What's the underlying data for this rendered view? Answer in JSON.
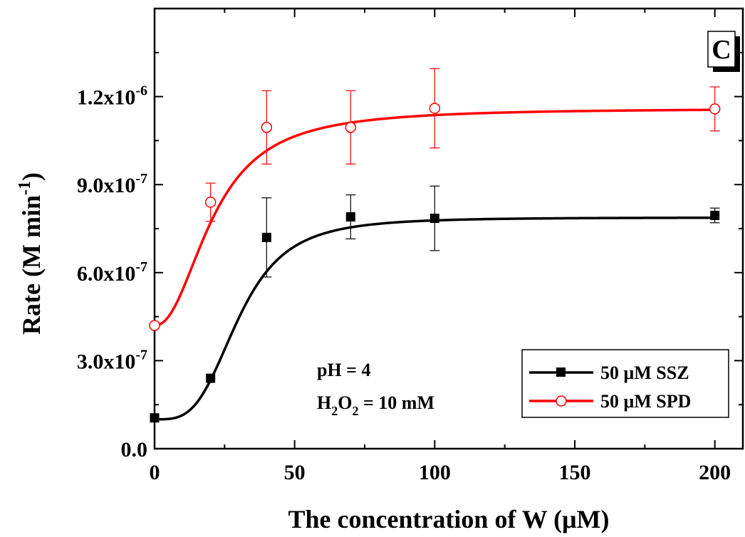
{
  "chart_data": {
    "type": "line",
    "panel_label": "C",
    "xlabel": "The concentration of W (μM)",
    "ylabel": "Rate (M min",
    "ylabel_sup": "-1",
    "ylabel_close": ")",
    "xlim": [
      0,
      210
    ],
    "ylim": [
      0,
      1.5e-06
    ],
    "x_ticks": [
      0,
      50,
      100,
      150,
      200
    ],
    "x_tick_labels": [
      "0",
      "50",
      "100",
      "150",
      "200"
    ],
    "y_ticks": [
      0,
      3e-07,
      6e-07,
      9e-07,
      1.2e-06
    ],
    "y_tick_labels": [
      {
        "mant": "0.0",
        "exp": ""
      },
      {
        "mant": "3.0x10",
        "exp": "-7"
      },
      {
        "mant": "6.0x10",
        "exp": "-7"
      },
      {
        "mant": "9.0x10",
        "exp": "-7"
      },
      {
        "mant": "1.2x10",
        "exp": "-6"
      }
    ],
    "grid": false,
    "legend_position": "bottom-right",
    "annotations": {
      "ph": "pH = 4",
      "h2o2_h": "H",
      "h2o2_sub1": "2",
      "h2o2_o": "O",
      "h2o2_sub2": "2",
      "h2o2_rest": " = 10 mM"
    },
    "series": [
      {
        "name": "50 μM SSZ",
        "color": "#000000",
        "marker": "filled-square",
        "x": [
          0,
          20,
          40,
          70,
          100,
          200
        ],
        "y": [
          1.05e-07,
          2.4e-07,
          7.2e-07,
          7.9e-07,
          7.85e-07,
          7.95e-07
        ],
        "err": [
          0,
          0,
          1.35e-07,
          7.5e-08,
          1.1e-07,
          2.5e-08
        ],
        "fit": {
          "A1": 1e-07,
          "A2": 7.88e-07,
          "x0": 30,
          "p": 3.5
        }
      },
      {
        "name": "50 μM SPD",
        "color": "#ff0000",
        "marker": "open-circle",
        "x": [
          0,
          20,
          40,
          70,
          100,
          200
        ],
        "y": [
          4.2e-07,
          8.4e-07,
          1.095e-06,
          1.095e-06,
          1.16e-06,
          1.158e-06
        ],
        "err": [
          0,
          6.5e-08,
          1.25e-07,
          1.25e-07,
          1.35e-07,
          7.5e-08
        ],
        "fit": {
          "A1": 4.2e-07,
          "A2": 1.16e-06,
          "x0": 21,
          "p": 2.2
        }
      }
    ]
  }
}
